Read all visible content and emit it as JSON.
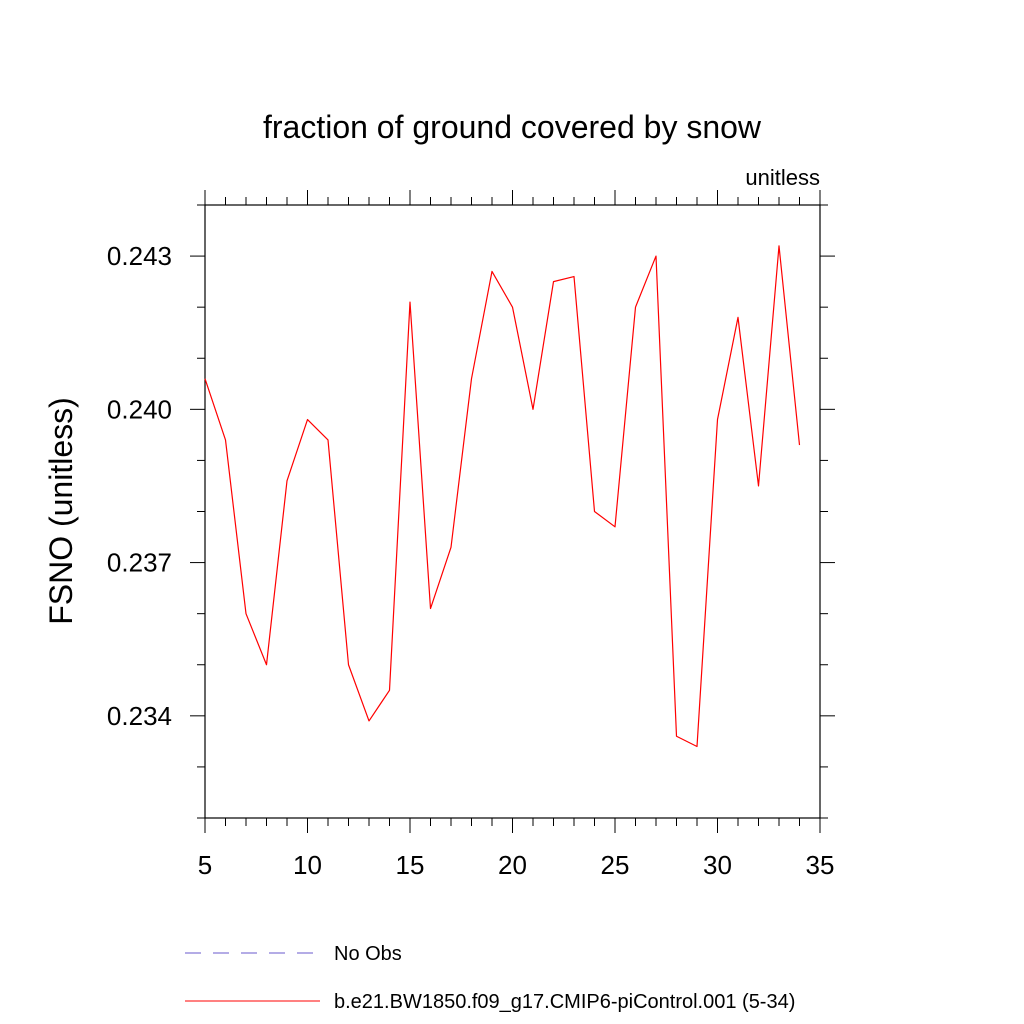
{
  "chart_data": {
    "type": "line",
    "title": "fraction of ground covered by snow",
    "units_label": "unitless",
    "ylabel": "FSNO  (unitless)",
    "xlabel": "",
    "xlim": [
      5,
      35
    ],
    "ylim": [
      0.232,
      0.244
    ],
    "xticks": [
      5,
      10,
      15,
      20,
      25,
      30,
      35
    ],
    "xtick_labels": [
      "5",
      "10",
      "15",
      "20",
      "25",
      "30",
      "35"
    ],
    "xminor_step": 1,
    "yticks": [
      0.234,
      0.237,
      0.24,
      0.243
    ],
    "ytick_labels": [
      "0.234",
      "0.237",
      "0.240",
      "0.243"
    ],
    "yminor_step": 0.001,
    "grid": false,
    "legend_position": "bottom",
    "series": [
      {
        "name": "b.e21.BW1850.f09_g17.CMIP6-piControl.001 (5-34)",
        "color": "#ff0000",
        "dash": "solid",
        "x": [
          5,
          6,
          7,
          8,
          9,
          10,
          11,
          12,
          13,
          14,
          15,
          16,
          17,
          18,
          19,
          20,
          21,
          22,
          23,
          24,
          25,
          26,
          27,
          28,
          29,
          30,
          31,
          32,
          33,
          34
        ],
        "y": [
          0.2406,
          0.2394,
          0.236,
          0.235,
          0.2386,
          0.2398,
          0.2394,
          0.235,
          0.2339,
          0.2345,
          0.2421,
          0.2361,
          0.2373,
          0.2406,
          0.2427,
          0.242,
          0.24,
          0.2425,
          0.2426,
          0.238,
          0.2377,
          0.242,
          0.243,
          0.2336,
          0.2334,
          0.2398,
          0.2418,
          0.2385,
          0.2432,
          0.2393
        ]
      }
    ],
    "legend": [
      {
        "label": "No Obs",
        "color": "#6a5acd",
        "dash": "dashed"
      },
      {
        "label": "b.e21.BW1850.f09_g17.CMIP6-piControl.001 (5-34)",
        "color": "#ff0000",
        "dash": "solid"
      }
    ]
  }
}
